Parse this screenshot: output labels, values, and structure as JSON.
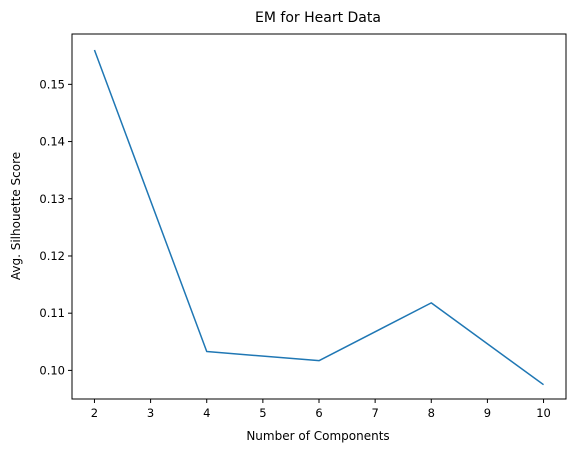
{
  "chart_data": {
    "type": "line",
    "title": "EM for Heart Data",
    "xlabel": "Number of Components",
    "ylabel": "Avg. Silhouette Score",
    "x": [
      2,
      4,
      6,
      8,
      10
    ],
    "series": [
      {
        "values": [
          0.156,
          0.1033,
          0.1017,
          0.1118,
          0.0975
        ]
      }
    ],
    "xlim": [
      1.6,
      10.4
    ],
    "ylim": [
      0.095,
      0.1588
    ],
    "xticks": [
      "2",
      "3",
      "4",
      "5",
      "6",
      "7",
      "8",
      "9",
      "10"
    ],
    "yticks": [
      "0.10",
      "0.11",
      "0.12",
      "0.13",
      "0.14",
      "0.15"
    ],
    "grid": false,
    "legend": "none",
    "colors": {
      "line": "#1f77b4"
    }
  }
}
